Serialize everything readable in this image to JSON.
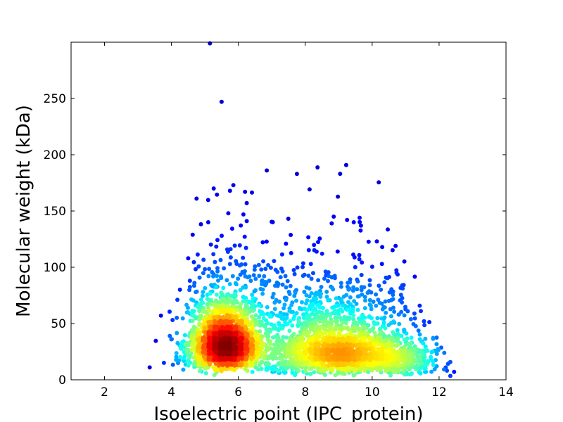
{
  "chart_data": {
    "type": "scatter",
    "title": "",
    "xlabel": "Isoelectric point (IPC_protein)",
    "ylabel": "Molecular weight (kDa)",
    "xlim": [
      1,
      14
    ],
    "ylim": [
      0,
      300
    ],
    "xticks": [
      2,
      4,
      6,
      8,
      10,
      12,
      14
    ],
    "yticks": [
      0,
      50,
      100,
      150,
      200,
      250
    ],
    "grid": false,
    "legend": "none",
    "colormap": "jet (point density)",
    "density_peaks": [
      {
        "x": 5.6,
        "y": 33,
        "color": "#b30000"
      },
      {
        "x": 8.8,
        "y": 27,
        "color": "#e8e800"
      }
    ],
    "outliers": [
      {
        "x": 5.15,
        "y": 299
      },
      {
        "x": 5.5,
        "y": 247
      },
      {
        "x": 6.85,
        "y": 186
      },
      {
        "x": 7.75,
        "y": 183
      },
      {
        "x": 5.85,
        "y": 173
      },
      {
        "x": 5.75,
        "y": 168
      },
      {
        "x": 6.2,
        "y": 167
      },
      {
        "x": 4.75,
        "y": 161
      },
      {
        "x": 6.25,
        "y": 157
      },
      {
        "x": 5.7,
        "y": 148
      },
      {
        "x": 8.85,
        "y": 145
      },
      {
        "x": 9.25,
        "y": 142
      },
      {
        "x": 6.25,
        "y": 141
      },
      {
        "x": 5.1,
        "y": 140
      },
      {
        "x": 9.45,
        "y": 140
      },
      {
        "x": 10.3,
        "y": 118
      },
      {
        "x": 10.7,
        "y": 119
      },
      {
        "x": 10.9,
        "y": 84
      },
      {
        "x": 11.55,
        "y": 52
      },
      {
        "x": 12.45,
        "y": 7
      },
      {
        "x": 3.35,
        "y": 11
      },
      {
        "x": 12.2,
        "y": 11
      },
      {
        "x": 4.5,
        "y": 108
      }
    ],
    "colors": {
      "low_density": "#0000cd",
      "high_density": "#b30000"
    }
  }
}
